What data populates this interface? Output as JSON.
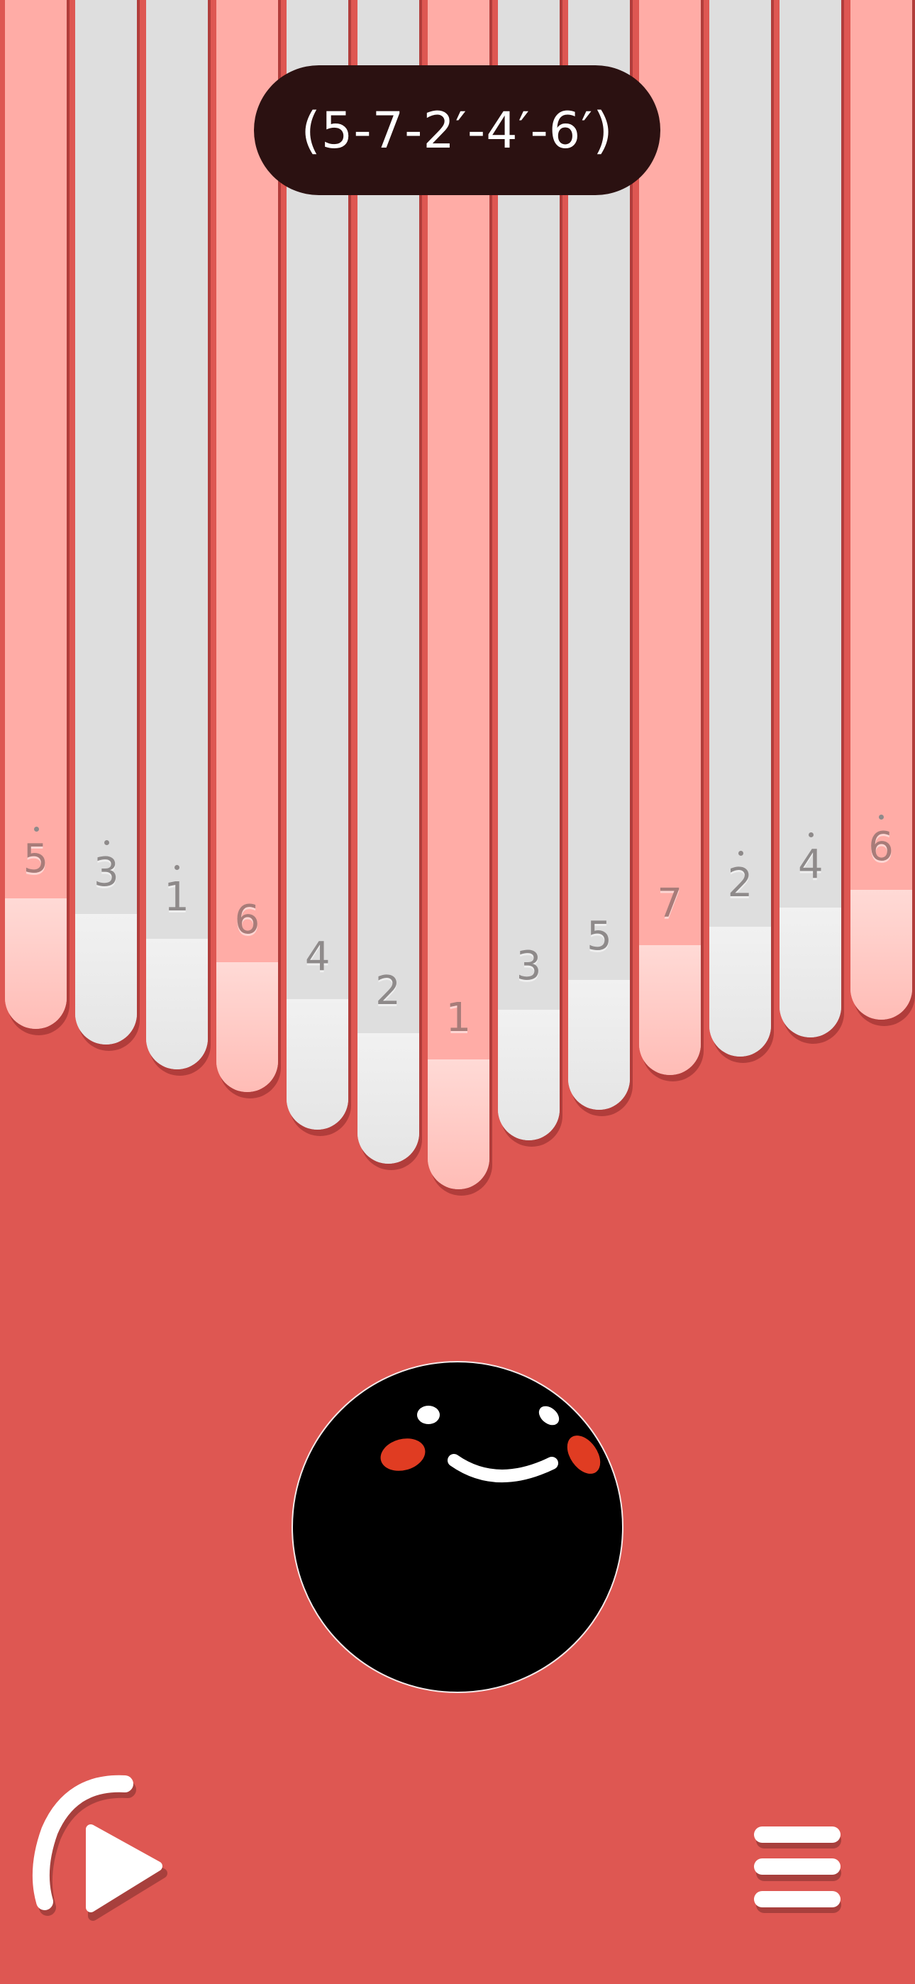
{
  "chord_hint": "(5-7-2′-4′-6′)",
  "keys": [
    {
      "label": "5",
      "high_dot": true,
      "color": "pink"
    },
    {
      "label": "3",
      "high_dot": true,
      "color": "gray"
    },
    {
      "label": "1",
      "high_dot": true,
      "color": "gray"
    },
    {
      "label": "6",
      "high_dot": false,
      "color": "pink"
    },
    {
      "label": "4",
      "high_dot": false,
      "color": "gray"
    },
    {
      "label": "2",
      "high_dot": false,
      "color": "gray"
    },
    {
      "label": "1",
      "high_dot": false,
      "color": "pink"
    },
    {
      "label": "3",
      "high_dot": false,
      "color": "gray"
    },
    {
      "label": "5",
      "high_dot": false,
      "color": "gray"
    },
    {
      "label": "7",
      "high_dot": false,
      "color": "pink"
    },
    {
      "label": "2",
      "high_dot": true,
      "color": "gray"
    },
    {
      "label": "4",
      "high_dot": true,
      "color": "gray"
    },
    {
      "label": "6",
      "high_dot": true,
      "color": "pink"
    }
  ],
  "colors": {
    "background": "#de5752",
    "pink_key": "#ffaca6",
    "gray_key": "#dedede",
    "pill": "#2b1111",
    "mascot": "#000000",
    "cheek": "#e03c22"
  },
  "controls": {
    "replay_play": "replay-play-icon",
    "menu": "hamburger-menu-icon"
  }
}
